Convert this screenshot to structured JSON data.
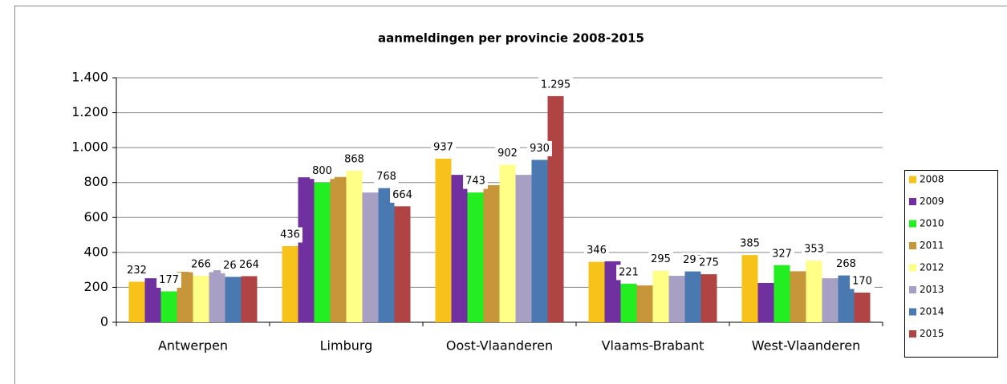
{
  "chart_data": {
    "type": "bar",
    "title": "aanmeldingen per provincie 2008-2015",
    "categories": [
      "Antwerpen",
      "Limburg",
      "Oost-Vlaanderen",
      "Vlaams-Brabant",
      "West-Vlaanderen"
    ],
    "series": [
      {
        "name": "2008",
        "color": "#f7c31a",
        "values": [
          232,
          436,
          937,
          346,
          385
        ],
        "show_labels": true
      },
      {
        "name": "2009",
        "color": "#7030a0",
        "values": [
          252,
          830,
          844,
          349,
          225
        ],
        "show_labels": false
      },
      {
        "name": "2010",
        "color": "#22ee22",
        "values": [
          177,
          800,
          743,
          221,
          327
        ],
        "show_labels": true
      },
      {
        "name": "2011",
        "color": "#c8963a",
        "values": [
          289,
          832,
          785,
          211,
          292
        ],
        "show_labels": false
      },
      {
        "name": "2012",
        "color": "#ffff88",
        "values": [
          266,
          868,
          902,
          295,
          353
        ],
        "show_labels": true
      },
      {
        "name": "2013",
        "color": "#a7a0c4",
        "values": [
          298,
          743,
          844,
          266,
          252
        ],
        "show_labels": false
      },
      {
        "name": "2014",
        "color": "#4a78b0",
        "values": [
          260,
          768,
          930,
          291,
          268
        ],
        "show_labels": true
      },
      {
        "name": "2015",
        "color": "#b04444",
        "values": [
          264,
          664,
          1295,
          275,
          170
        ],
        "value_labels": [
          "264",
          "664",
          "1.295",
          "275",
          "170"
        ],
        "show_labels": true
      }
    ],
    "ylim": [
      0,
      1400
    ],
    "yticks": [
      0,
      200,
      400,
      600,
      800,
      {
        "value": 1000,
        "label": "1.000"
      },
      {
        "value": 1200,
        "label": "1.200"
      },
      {
        "value": 1400,
        "label": "1.400"
      }
    ],
    "grid": true,
    "legend": "right"
  }
}
